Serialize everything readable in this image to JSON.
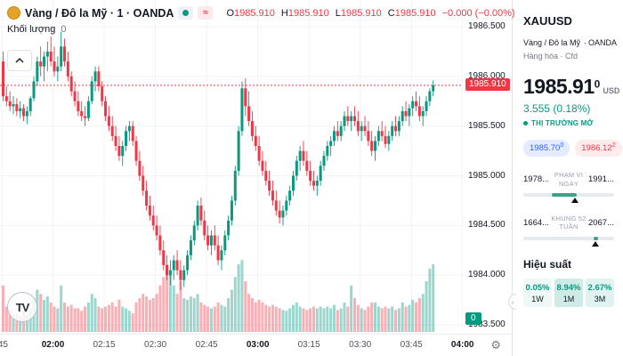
{
  "header": {
    "symbol_title": "Vàng / Đô la Mỹ",
    "interval": "1",
    "exchange": "OANDA",
    "separator": "·",
    "approx_symbol": "≈",
    "ohlc": {
      "o_label": "O",
      "o": "1985.910",
      "h_label": "H",
      "h": "1985.910",
      "l_label": "L",
      "l": "1985.910",
      "c_label": "C",
      "c": "1985.910",
      "change": "−0.000 (−0.00%)"
    },
    "volume_label": "Khối lượng",
    "volume_value": "0",
    "watermark": "TV"
  },
  "chart_data": {
    "type": "candlestick",
    "symbol": "XAUUSD",
    "interval_minutes": 1,
    "last_price": "1985.910",
    "last_price_value": 1985.91,
    "volume_badge": "0",
    "axis": {
      "top_price": 1986.5,
      "bottom_price": 1983.5,
      "price_ticks": [
        "1986.500",
        "1986.000",
        "1985.500",
        "1985.000",
        "1984.500",
        "1984.000",
        "1983.500"
      ],
      "time_labels": [
        {
          "text": ":45",
          "min": 0,
          "bold": false
        },
        {
          "text": "02:00",
          "min": 15,
          "bold": true
        },
        {
          "text": "02:15",
          "min": 30,
          "bold": false
        },
        {
          "text": "02:30",
          "min": 45,
          "bold": false
        },
        {
          "text": "02:45",
          "min": 60,
          "bold": false
        },
        {
          "text": "03:00",
          "min": 75,
          "bold": true
        },
        {
          "text": "03:15",
          "min": 90,
          "bold": false
        },
        {
          "text": "03:30",
          "min": 105,
          "bold": false
        },
        {
          "text": "03:45",
          "min": 120,
          "bold": false
        },
        {
          "text": "04:00",
          "min": 135,
          "bold": true
        }
      ]
    },
    "colors": {
      "up": "#089981",
      "down": "#F23645",
      "grid": "#F0F3FA",
      "last_price_line": "#F23645"
    },
    "candles": [
      [
        1986.15,
        1986.25,
        1985.75,
        1985.8,
        55
      ],
      [
        1985.8,
        1985.9,
        1985.7,
        1985.75,
        30
      ],
      [
        1985.75,
        1985.85,
        1985.65,
        1985.7,
        25
      ],
      [
        1985.7,
        1985.8,
        1985.62,
        1985.72,
        20
      ],
      [
        1985.72,
        1985.78,
        1985.6,
        1985.65,
        22
      ],
      [
        1985.65,
        1985.75,
        1985.58,
        1985.68,
        18
      ],
      [
        1985.68,
        1985.72,
        1985.55,
        1985.6,
        25
      ],
      [
        1985.6,
        1985.7,
        1985.52,
        1985.65,
        20
      ],
      [
        1985.65,
        1985.8,
        1985.6,
        1985.78,
        28
      ],
      [
        1985.78,
        1986.0,
        1985.75,
        1985.95,
        40
      ],
      [
        1985.95,
        1986.2,
        1985.9,
        1986.15,
        50
      ],
      [
        1986.15,
        1986.3,
        1986.0,
        1986.1,
        45
      ],
      [
        1986.1,
        1986.25,
        1985.95,
        1986.2,
        38
      ],
      [
        1986.2,
        1986.35,
        1986.05,
        1986.25,
        42
      ],
      [
        1986.25,
        1986.4,
        1986.1,
        1986.15,
        35
      ],
      [
        1986.15,
        1986.3,
        1986.0,
        1986.05,
        30
      ],
      [
        1986.05,
        1986.2,
        1985.95,
        1986.1,
        28
      ],
      [
        1986.1,
        1986.45,
        1986.05,
        1986.3,
        55
      ],
      [
        1986.3,
        1986.38,
        1986.1,
        1986.15,
        35
      ],
      [
        1986.15,
        1986.25,
        1985.95,
        1986.0,
        30
      ],
      [
        1986.0,
        1986.05,
        1985.8,
        1985.85,
        32
      ],
      [
        1985.85,
        1985.95,
        1985.7,
        1985.75,
        28
      ],
      [
        1985.75,
        1985.85,
        1985.6,
        1985.65,
        28
      ],
      [
        1985.65,
        1985.75,
        1985.55,
        1985.6,
        25
      ],
      [
        1985.6,
        1985.7,
        1985.5,
        1985.58,
        30
      ],
      [
        1985.58,
        1985.8,
        1985.55,
        1985.75,
        35
      ],
      [
        1985.75,
        1986.0,
        1985.72,
        1985.95,
        45
      ],
      [
        1985.95,
        1986.1,
        1985.85,
        1986.05,
        40
      ],
      [
        1986.05,
        1986.1,
        1985.85,
        1985.9,
        30
      ],
      [
        1985.9,
        1985.95,
        1985.7,
        1985.75,
        28
      ],
      [
        1985.75,
        1985.8,
        1985.55,
        1985.6,
        30
      ],
      [
        1985.6,
        1985.7,
        1985.45,
        1985.5,
        32
      ],
      [
        1985.5,
        1985.6,
        1985.35,
        1985.4,
        35
      ],
      [
        1985.4,
        1985.5,
        1985.25,
        1985.3,
        30
      ],
      [
        1985.3,
        1985.4,
        1985.15,
        1985.2,
        38
      ],
      [
        1985.2,
        1985.35,
        1985.1,
        1985.3,
        30
      ],
      [
        1985.3,
        1985.5,
        1985.25,
        1985.45,
        28
      ],
      [
        1985.45,
        1985.55,
        1985.35,
        1985.5,
        25
      ],
      [
        1985.5,
        1985.55,
        1985.3,
        1985.35,
        22
      ],
      [
        1985.35,
        1985.4,
        1985.1,
        1985.15,
        35
      ],
      [
        1985.15,
        1985.25,
        1984.95,
        1985.0,
        40
      ],
      [
        1985.0,
        1985.1,
        1984.8,
        1984.85,
        45
      ],
      [
        1984.85,
        1984.95,
        1984.65,
        1984.7,
        42
      ],
      [
        1984.7,
        1984.8,
        1984.55,
        1984.6,
        38
      ],
      [
        1984.6,
        1984.7,
        1984.45,
        1984.5,
        40
      ],
      [
        1984.5,
        1984.6,
        1984.35,
        1984.4,
        45
      ],
      [
        1984.4,
        1984.5,
        1984.2,
        1984.25,
        55
      ],
      [
        1984.25,
        1984.35,
        1984.05,
        1984.1,
        65
      ],
      [
        1984.1,
        1984.2,
        1983.95,
        1984.0,
        80
      ],
      [
        1984.0,
        1984.15,
        1983.9,
        1984.05,
        70
      ],
      [
        1984.05,
        1984.2,
        1983.95,
        1984.15,
        55
      ],
      [
        1984.15,
        1984.25,
        1984.0,
        1984.05,
        45
      ],
      [
        1984.05,
        1984.15,
        1983.85,
        1983.95,
        60
      ],
      [
        1983.95,
        1984.1,
        1983.88,
        1984.05,
        40
      ],
      [
        1984.05,
        1984.25,
        1984.0,
        1984.2,
        38
      ],
      [
        1984.2,
        1984.4,
        1984.15,
        1984.35,
        42
      ],
      [
        1984.35,
        1984.55,
        1984.3,
        1984.5,
        40
      ],
      [
        1984.5,
        1984.75,
        1984.45,
        1984.7,
        45
      ],
      [
        1984.7,
        1984.78,
        1984.5,
        1984.55,
        35
      ],
      [
        1984.55,
        1984.65,
        1984.35,
        1984.4,
        32
      ],
      [
        1984.4,
        1984.5,
        1984.25,
        1984.3,
        30
      ],
      [
        1984.3,
        1984.45,
        1984.2,
        1984.4,
        28
      ],
      [
        1984.4,
        1984.5,
        1984.25,
        1984.3,
        30
      ],
      [
        1984.3,
        1984.4,
        1984.1,
        1984.15,
        35
      ],
      [
        1984.15,
        1984.3,
        1984.05,
        1984.25,
        32
      ],
      [
        1984.25,
        1984.45,
        1984.2,
        1984.4,
        30
      ],
      [
        1984.4,
        1984.6,
        1984.35,
        1984.55,
        40
      ],
      [
        1984.55,
        1984.8,
        1984.5,
        1984.75,
        50
      ],
      [
        1984.75,
        1985.1,
        1984.7,
        1985.05,
        65
      ],
      [
        1985.05,
        1985.5,
        1985.0,
        1985.45,
        80
      ],
      [
        1985.45,
        1985.95,
        1985.4,
        1985.88,
        85
      ],
      [
        1985.88,
        1985.98,
        1985.6,
        1985.7,
        60
      ],
      [
        1985.7,
        1985.85,
        1985.5,
        1985.55,
        45
      ],
      [
        1985.55,
        1985.65,
        1985.35,
        1985.4,
        40
      ],
      [
        1985.4,
        1985.5,
        1985.25,
        1985.3,
        35
      ],
      [
        1985.3,
        1985.4,
        1985.1,
        1985.15,
        38
      ],
      [
        1985.15,
        1985.25,
        1985.0,
        1985.05,
        35
      ],
      [
        1985.05,
        1985.15,
        1984.9,
        1984.95,
        32
      ],
      [
        1984.95,
        1985.05,
        1984.8,
        1984.85,
        30
      ],
      [
        1984.85,
        1984.95,
        1984.7,
        1984.75,
        32
      ],
      [
        1984.75,
        1984.85,
        1984.6,
        1984.65,
        30
      ],
      [
        1984.65,
        1984.75,
        1984.52,
        1984.58,
        28
      ],
      [
        1984.58,
        1984.7,
        1984.5,
        1984.65,
        26
      ],
      [
        1984.65,
        1984.8,
        1984.6,
        1984.75,
        25
      ],
      [
        1984.75,
        1984.9,
        1984.7,
        1984.85,
        28
      ],
      [
        1984.85,
        1985.05,
        1984.8,
        1985.0,
        32
      ],
      [
        1985.0,
        1985.2,
        1984.95,
        1985.15,
        35
      ],
      [
        1985.15,
        1985.3,
        1985.05,
        1985.25,
        30
      ],
      [
        1985.25,
        1985.35,
        1985.1,
        1985.15,
        28
      ],
      [
        1985.15,
        1985.25,
        1985.0,
        1985.05,
        26
      ],
      [
        1985.05,
        1985.15,
        1984.9,
        1984.95,
        28
      ],
      [
        1984.95,
        1985.05,
        1984.85,
        1984.9,
        30
      ],
      [
        1984.9,
        1985.0,
        1984.8,
        1984.95,
        28
      ],
      [
        1984.95,
        1985.15,
        1984.9,
        1985.1,
        30
      ],
      [
        1985.1,
        1985.25,
        1985.05,
        1985.2,
        28
      ],
      [
        1985.2,
        1985.35,
        1985.15,
        1985.3,
        30
      ],
      [
        1985.3,
        1985.4,
        1985.2,
        1985.35,
        28
      ],
      [
        1985.35,
        1985.5,
        1985.3,
        1985.45,
        32
      ],
      [
        1985.45,
        1985.55,
        1985.35,
        1985.4,
        26
      ],
      [
        1985.4,
        1985.55,
        1985.35,
        1985.5,
        28
      ],
      [
        1985.5,
        1985.65,
        1985.45,
        1985.6,
        35
      ],
      [
        1985.6,
        1985.7,
        1985.5,
        1985.55,
        30
      ],
      [
        1985.55,
        1985.65,
        1985.45,
        1985.6,
        55
      ],
      [
        1985.6,
        1985.7,
        1985.5,
        1985.55,
        40
      ],
      [
        1985.55,
        1985.65,
        1985.4,
        1985.45,
        32
      ],
      [
        1985.45,
        1985.55,
        1985.35,
        1985.5,
        28
      ],
      [
        1985.5,
        1985.6,
        1985.4,
        1985.45,
        26
      ],
      [
        1985.45,
        1985.55,
        1985.3,
        1985.35,
        30
      ],
      [
        1985.35,
        1985.45,
        1985.2,
        1985.25,
        35
      ],
      [
        1985.25,
        1985.4,
        1985.15,
        1985.35,
        35
      ],
      [
        1985.35,
        1985.5,
        1985.3,
        1985.45,
        30
      ],
      [
        1985.45,
        1985.55,
        1985.35,
        1985.4,
        28
      ],
      [
        1985.4,
        1985.5,
        1985.28,
        1985.32,
        30
      ],
      [
        1985.32,
        1985.45,
        1985.25,
        1985.4,
        28
      ],
      [
        1985.4,
        1985.55,
        1985.35,
        1985.5,
        30
      ],
      [
        1985.5,
        1985.6,
        1985.4,
        1985.45,
        26
      ],
      [
        1985.45,
        1985.6,
        1985.4,
        1985.55,
        28
      ],
      [
        1985.55,
        1985.7,
        1985.5,
        1985.65,
        35
      ],
      [
        1985.65,
        1985.75,
        1985.55,
        1985.6,
        30
      ],
      [
        1985.6,
        1985.72,
        1985.5,
        1985.68,
        32
      ],
      [
        1985.68,
        1985.8,
        1985.6,
        1985.75,
        38
      ],
      [
        1985.75,
        1985.85,
        1985.65,
        1985.7,
        35
      ],
      [
        1985.7,
        1985.8,
        1985.55,
        1985.6,
        40
      ],
      [
        1985.6,
        1985.7,
        1985.5,
        1985.65,
        45
      ],
      [
        1985.65,
        1985.8,
        1985.6,
        1985.75,
        60
      ],
      [
        1985.75,
        1985.88,
        1985.7,
        1985.85,
        75
      ],
      [
        1985.85,
        1985.96,
        1985.8,
        1985.91,
        80
      ]
    ]
  },
  "panel": {
    "symbol": "XAUUSD",
    "description": "Vàng / Đô la Mỹ",
    "separator": "·",
    "exchange": "OANDA",
    "market_type": "Hàng hóa · Cfd",
    "price_main": "1985.91",
    "price_sup": "0",
    "currency": "USD",
    "change": "3.555 (0.18%)",
    "market_status": "THỊ TRƯỜNG MỞ",
    "bid": "1985.70",
    "bid_sup": "0",
    "ask": "1986.12",
    "ask_sup": "2",
    "day_range": {
      "label_line1": "PHẠM VI",
      "label_line2": "NGÀY",
      "low": "1978...",
      "high": "1991...",
      "bar_start_pct": 31,
      "bar_end_pct": 59,
      "marker_pct": 57
    },
    "week52_range": {
      "label_line1": "KHUNG 52",
      "label_line2": "TUẦN",
      "low": "1664...",
      "high": "2067...",
      "bar_start_pct": 77,
      "bar_end_pct": 82,
      "marker_pct": 79
    },
    "performance": {
      "title": "Hiệu suất",
      "items": [
        {
          "value": "0.05%",
          "label": "1W"
        },
        {
          "value": "8.94%",
          "label": "1M"
        },
        {
          "value": "2.67%",
          "label": "3M"
        }
      ]
    }
  }
}
